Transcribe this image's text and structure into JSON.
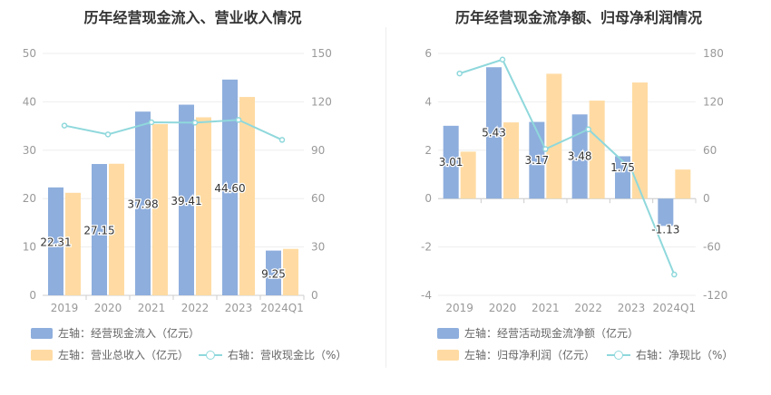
{
  "colors": {
    "bar_blue": "#8eaedd",
    "bar_orange": "#ffdba3",
    "line": "#8fd8dc",
    "axis_text": "#999999",
    "grid": "#eeeeee"
  },
  "chart_data": [
    {
      "type": "bar",
      "title": "历年经营现金流入、营业收入情况",
      "categories": [
        "2019",
        "2020",
        "2021",
        "2022",
        "2023",
        "2024Q1"
      ],
      "left_axis": {
        "min": 0,
        "max": 50,
        "ticks": [
          "0",
          "10",
          "20",
          "30",
          "40",
          "50"
        ]
      },
      "right_axis": {
        "min": 0,
        "max": 150,
        "ticks": [
          "0",
          "30",
          "60",
          "90",
          "120",
          "150"
        ]
      },
      "series": [
        {
          "name": "左轴：经营现金流入（亿元）",
          "kind": "bar",
          "axis": "left",
          "color": "#8eaedd",
          "values": [
            22.31,
            27.15,
            37.98,
            39.41,
            44.6,
            9.25
          ],
          "labels": [
            "22.31",
            "27.15",
            "37.98",
            "39.41",
            "44.60",
            "9.25"
          ]
        },
        {
          "name": "左轴：营业总收入（亿元）",
          "kind": "bar",
          "axis": "left",
          "color": "#ffdba3",
          "values": [
            21.2,
            27.2,
            35.4,
            36.8,
            41.0,
            9.6
          ]
        },
        {
          "name": "右轴：营收现金比（%）",
          "kind": "line",
          "axis": "right",
          "color": "#8fd8dc",
          "values": [
            105.3,
            99.8,
            107.3,
            107.1,
            108.8,
            96.4
          ]
        }
      ],
      "legend": [
        "左轴：经营现金流入（亿元）",
        "左轴：营业总收入（亿元）",
        "右轴：营收现金比（%）"
      ]
    },
    {
      "type": "bar",
      "title": "历年经营现金流净额、归母净利润情况",
      "categories": [
        "2019",
        "2020",
        "2021",
        "2022",
        "2023",
        "2024Q1"
      ],
      "left_axis": {
        "min": -4,
        "max": 6,
        "ticks": [
          "-4",
          "-2",
          "0",
          "2",
          "4",
          "6"
        ]
      },
      "right_axis": {
        "min": -120,
        "max": 180,
        "ticks": [
          "-120",
          "-60",
          "0",
          "60",
          "120",
          "180"
        ]
      },
      "series": [
        {
          "name": "左轴：经营活动现金流净额（亿元）",
          "kind": "bar",
          "axis": "left",
          "color": "#8eaedd",
          "values": [
            3.01,
            5.43,
            3.17,
            3.48,
            1.75,
            -1.13
          ],
          "labels": [
            "3.01",
            "5.43",
            "3.17",
            "3.48",
            "1.75",
            "-1.13"
          ]
        },
        {
          "name": "左轴：归母净利润（亿元）",
          "kind": "bar",
          "axis": "left",
          "color": "#ffdba3",
          "values": [
            1.94,
            3.15,
            5.16,
            4.05,
            4.8,
            1.2
          ]
        },
        {
          "name": "右轴：净现比（%）",
          "kind": "line",
          "axis": "right",
          "color": "#8fd8dc",
          "values": [
            155.2,
            172.4,
            61.4,
            85.9,
            36.5,
            -94.2
          ]
        }
      ],
      "legend": [
        "左轴：经营活动现金流净额（亿元）",
        "左轴：归母净利润（亿元）",
        "右轴：净现比（%）"
      ]
    }
  ]
}
